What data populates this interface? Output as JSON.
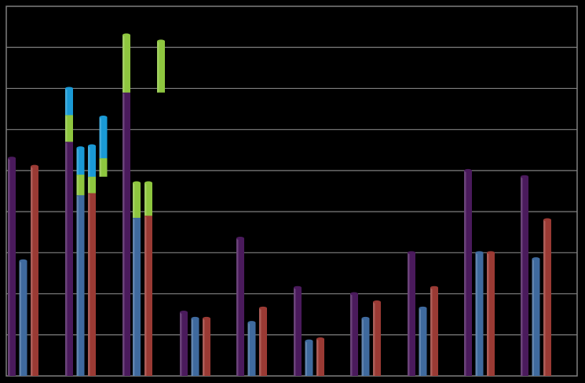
{
  "chart_data": {
    "type": "bar",
    "stacked": true,
    "title": "",
    "xlabel": "",
    "ylabel": "",
    "ylim": [
      0,
      9
    ],
    "grid": true,
    "legend": "none",
    "colors": {
      "background": "#000000",
      "plot_border": "#7f7f7f",
      "gridline": "#7f7f7f",
      "purple": "#4a1a5c",
      "blue": "#3f6a9e",
      "red": "#9a3a34",
      "green": "#8ec63f",
      "cyan": "#1a9ad6"
    },
    "groups": [
      {
        "bars": [
          {
            "segments": [
              {
                "color": "purple",
                "value": 5.3
              }
            ]
          },
          {
            "segments": [
              {
                "color": "blue",
                "value": 2.8
              }
            ]
          },
          {
            "segments": [
              {
                "color": "red",
                "value": 5.1
              }
            ]
          }
        ]
      },
      {
        "bars": [
          {
            "segments": [
              {
                "color": "purple",
                "value": 5.7
              },
              {
                "color": "green",
                "value": 0.65
              },
              {
                "color": "cyan",
                "value": 0.65
              }
            ]
          },
          {
            "segments": [
              {
                "color": "blue",
                "value": 4.4
              },
              {
                "color": "green",
                "value": 0.5
              },
              {
                "color": "cyan",
                "value": 0.65
              }
            ]
          },
          {
            "segments": [
              {
                "color": "red",
                "value": 4.45
              },
              {
                "color": "green",
                "value": 0.4
              },
              {
                "color": "cyan",
                "value": 0.75
              }
            ]
          },
          {
            "segments": [
              {
                "color": "green",
                "value": 0.45
              },
              {
                "color": "cyan",
                "value": 1.0
              }
            ]
          }
        ]
      },
      {
        "bars": [
          {
            "segments": [
              {
                "color": "purple",
                "value": 6.9
              },
              {
                "color": "green",
                "value": 1.4
              }
            ]
          },
          {
            "segments": [
              {
                "color": "green",
                "value": 1.25
              }
            ]
          },
          {
            "segments": [
              {
                "color": "blue",
                "value": 3.85
              },
              {
                "color": "green",
                "value": 0.85
              }
            ]
          },
          {
            "segments": [
              {
                "color": "red",
                "value": 3.9
              },
              {
                "color": "green",
                "value": 0.8
              }
            ]
          }
        ]
      },
      {
        "bars": [
          {
            "segments": [
              {
                "color": "purple",
                "value": 1.55
              }
            ]
          },
          {
            "segments": [
              {
                "color": "blue",
                "value": 1.4
              }
            ]
          },
          {
            "segments": [
              {
                "color": "red",
                "value": 1.4
              }
            ]
          }
        ]
      },
      {
        "bars": [
          {
            "segments": [
              {
                "color": "purple",
                "value": 3.35
              }
            ]
          },
          {
            "segments": [
              {
                "color": "blue",
                "value": 1.3
              }
            ]
          },
          {
            "segments": [
              {
                "color": "red",
                "value": 1.65
              }
            ]
          }
        ]
      },
      {
        "bars": [
          {
            "segments": [
              {
                "color": "purple",
                "value": 2.15
              }
            ]
          },
          {
            "segments": [
              {
                "color": "blue",
                "value": 0.85
              }
            ]
          },
          {
            "segments": [
              {
                "color": "red",
                "value": 0.9
              }
            ]
          }
        ]
      },
      {
        "bars": [
          {
            "segments": [
              {
                "color": "purple",
                "value": 2.0
              }
            ]
          },
          {
            "segments": [
              {
                "color": "blue",
                "value": 1.4
              }
            ]
          },
          {
            "segments": [
              {
                "color": "red",
                "value": 1.8
              }
            ]
          }
        ]
      },
      {
        "bars": [
          {
            "segments": [
              {
                "color": "purple",
                "value": 3.0
              }
            ]
          },
          {
            "segments": [
              {
                "color": "blue",
                "value": 1.65
              }
            ]
          },
          {
            "segments": [
              {
                "color": "red",
                "value": 2.15
              }
            ]
          }
        ]
      },
      {
        "bars": [
          {
            "segments": [
              {
                "color": "purple",
                "value": 5.0
              }
            ]
          },
          {
            "segments": [
              {
                "color": "blue",
                "value": 3.0
              }
            ]
          },
          {
            "segments": [
              {
                "color": "red",
                "value": 3.0
              }
            ]
          }
        ]
      },
      {
        "bars": [
          {
            "segments": [
              {
                "color": "purple",
                "value": 4.85
              }
            ]
          },
          {
            "segments": [
              {
                "color": "blue",
                "value": 2.85
              }
            ]
          },
          {
            "segments": [
              {
                "color": "red",
                "value": 3.8
              }
            ]
          }
        ]
      }
    ]
  }
}
